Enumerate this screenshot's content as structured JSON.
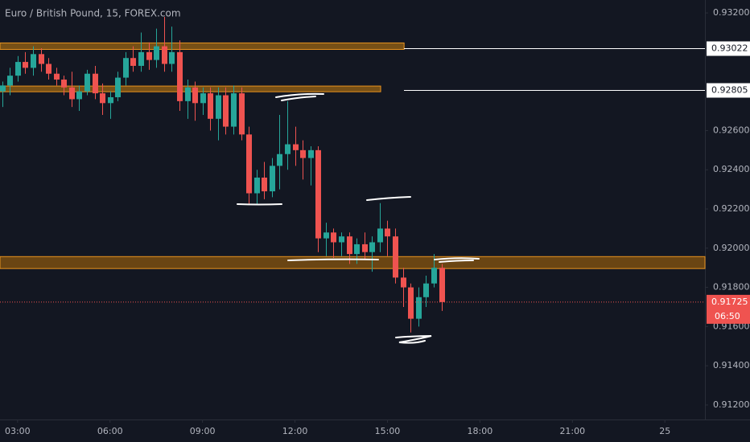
{
  "chart_data": {
    "type": "candlestick",
    "title": "Euro / British Pound, 15, FOREX.com",
    "up_color": "#26a69a",
    "down_color": "#ef5350",
    "grid": false,
    "x": [
      2.5,
      2.75,
      3,
      3.25,
      3.5,
      3.75,
      4,
      4.25,
      4.5,
      4.75,
      5,
      5.25,
      5.5,
      5.75,
      6,
      6.25,
      6.5,
      6.75,
      7,
      7.25,
      7.5,
      7.75,
      8,
      8.25,
      8.5,
      8.75,
      9,
      9.25,
      9.5,
      9.75,
      10,
      10.25,
      10.5,
      10.75,
      11,
      11.25,
      11.5,
      11.75,
      12,
      12.25,
      12.5,
      12.75,
      13,
      13.25,
      13.5,
      13.75,
      14,
      14.25,
      14.5,
      14.75,
      15,
      15.25,
      15.5,
      15.75,
      16,
      16.25,
      16.5,
      16.75
    ],
    "open": [
      0.928,
      0.9283,
      0.9288,
      0.9295,
      0.9292,
      0.9299,
      0.9294,
      0.9289,
      0.9286,
      0.9282,
      0.9276,
      0.928,
      0.9289,
      0.9279,
      0.9274,
      0.9277,
      0.9287,
      0.9297,
      0.9293,
      0.93,
      0.9296,
      0.9303,
      0.9294,
      0.93,
      0.9275,
      0.9282,
      0.9274,
      0.9279,
      0.9266,
      0.9278,
      0.9262,
      0.9279,
      0.9258,
      0.9228,
      0.9236,
      0.9229,
      0.9242,
      0.9248,
      0.9253,
      0.925,
      0.9246,
      0.925,
      0.9205,
      0.9208,
      0.9203,
      0.9206,
      0.9197,
      0.9202,
      0.9198,
      0.9203,
      0.921,
      0.9206,
      0.9185,
      0.918,
      0.9164,
      0.9175,
      0.9182,
      0.919
    ],
    "high": [
      0.9285,
      0.9292,
      0.9298,
      0.93,
      0.9303,
      0.9302,
      0.9297,
      0.9292,
      0.9288,
      0.929,
      0.9283,
      0.9291,
      0.9293,
      0.9284,
      0.928,
      0.929,
      0.93,
      0.9303,
      0.931,
      0.9305,
      0.9312,
      0.9318,
      0.9313,
      0.9306,
      0.9286,
      0.9285,
      0.9282,
      0.9282,
      0.9282,
      0.9282,
      0.9283,
      0.9282,
      0.9262,
      0.924,
      0.9244,
      0.9246,
      0.9268,
      0.9275,
      0.9262,
      0.9255,
      0.9252,
      0.9252,
      0.9213,
      0.921,
      0.9208,
      0.9208,
      0.9205,
      0.9208,
      0.9206,
      0.9223,
      0.9214,
      0.921,
      0.919,
      0.9182,
      0.918,
      0.9186,
      0.9197,
      0.9192
    ],
    "low": [
      0.9272,
      0.9278,
      0.9285,
      0.9289,
      0.9288,
      0.929,
      0.9286,
      0.9283,
      0.9278,
      0.9272,
      0.927,
      0.9278,
      0.9276,
      0.9268,
      0.9266,
      0.9275,
      0.9283,
      0.929,
      0.929,
      0.9291,
      0.9292,
      0.929,
      0.929,
      0.927,
      0.9266,
      0.9265,
      0.9268,
      0.926,
      0.9255,
      0.9258,
      0.9258,
      0.9255,
      0.9222,
      0.9222,
      0.9225,
      0.9226,
      0.923,
      0.924,
      0.9242,
      0.9235,
      0.9232,
      0.9198,
      0.9196,
      0.9195,
      0.9196,
      0.9192,
      0.9192,
      0.9194,
      0.9188,
      0.9198,
      0.9196,
      0.9182,
      0.917,
      0.9157,
      0.916,
      0.917,
      0.918,
      0.9168
    ],
    "close": [
      0.9283,
      0.9288,
      0.9295,
      0.9292,
      0.9299,
      0.9294,
      0.9289,
      0.9286,
      0.9282,
      0.9276,
      0.928,
      0.9289,
      0.9279,
      0.9274,
      0.9277,
      0.9287,
      0.9297,
      0.9293,
      0.93,
      0.9296,
      0.9303,
      0.9294,
      0.93,
      0.9275,
      0.9282,
      0.9274,
      0.9279,
      0.9266,
      0.9278,
      0.9262,
      0.9279,
      0.9258,
      0.9228,
      0.9236,
      0.9229,
      0.9242,
      0.9248,
      0.9253,
      0.925,
      0.9246,
      0.925,
      0.9205,
      0.9208,
      0.9203,
      0.9206,
      0.9197,
      0.9202,
      0.9198,
      0.9203,
      0.921,
      0.9206,
      0.9185,
      0.918,
      0.9164,
      0.9175,
      0.9182,
      0.919,
      0.91725
    ],
    "xlim": [
      2.43,
      25.3
    ],
    "xticks": [
      {
        "value": 3,
        "label": "03:00"
      },
      {
        "value": 6,
        "label": "06:00"
      },
      {
        "value": 9,
        "label": "09:00"
      },
      {
        "value": 12,
        "label": "12:00"
      },
      {
        "value": 15,
        "label": "15:00"
      },
      {
        "value": 18,
        "label": "18:00"
      },
      {
        "value": 21,
        "label": "21:00"
      },
      {
        "value": 24,
        "label": "25"
      }
    ],
    "ylim": [
      0.91126,
      0.93266
    ],
    "yticks": [
      {
        "value": 0.932,
        "label": "0.93200"
      },
      {
        "value": 0.926,
        "label": "0.92600"
      },
      {
        "value": 0.924,
        "label": "0.92400"
      },
      {
        "value": 0.922,
        "label": "0.92200"
      },
      {
        "value": 0.92,
        "label": "0.92000"
      },
      {
        "value": 0.918,
        "label": "0.91800"
      },
      {
        "value": 0.916,
        "label": "0.91600"
      },
      {
        "value": 0.914,
        "label": "0.91400"
      },
      {
        "value": 0.912,
        "label": "0.91200"
      }
    ],
    "zones": [
      {
        "low": 0.93014,
        "high": 0.93047,
        "xlim": [
          2.43,
          15.54
        ],
        "color": "#8a5a14"
      },
      {
        "low": 0.92798,
        "high": 0.92827,
        "xlim": [
          2.43,
          14.78
        ],
        "color": "#8a5a14"
      },
      {
        "low": 0.91896,
        "high": 0.91957,
        "xlim": [
          2.43,
          25.3
        ],
        "color": "#7a4e10"
      }
    ],
    "price_lines": [
      {
        "value": 0.93022,
        "label": "0.93022"
      },
      {
        "value": 0.92805,
        "label": "0.92805"
      }
    ],
    "last_price": {
      "value": 0.91725,
      "label": "0.91725",
      "countdown": "06:50",
      "color": "#ef5350"
    }
  }
}
